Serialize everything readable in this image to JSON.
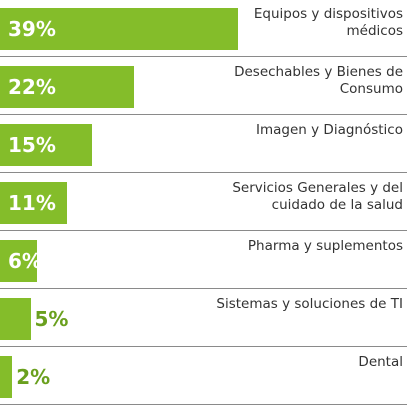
{
  "chart_data": {
    "type": "bar",
    "orientation": "horizontal",
    "categories": [
      "Equipos y dispositivos médicos",
      "Desechables y Bienes de Consumo",
      "Imagen y Diagnóstico",
      "Servicios Generales y del cuidado de la salud",
      "Pharma y suplementos",
      "Sistemas y soluciones de TI",
      "Dental"
    ],
    "values": [
      39,
      22,
      15,
      11,
      6,
      5,
      2
    ],
    "value_labels": [
      "39%",
      "22%",
      "15%",
      "11%",
      "6%",
      "5%",
      "2%"
    ],
    "color": "#84bd2a"
  }
}
